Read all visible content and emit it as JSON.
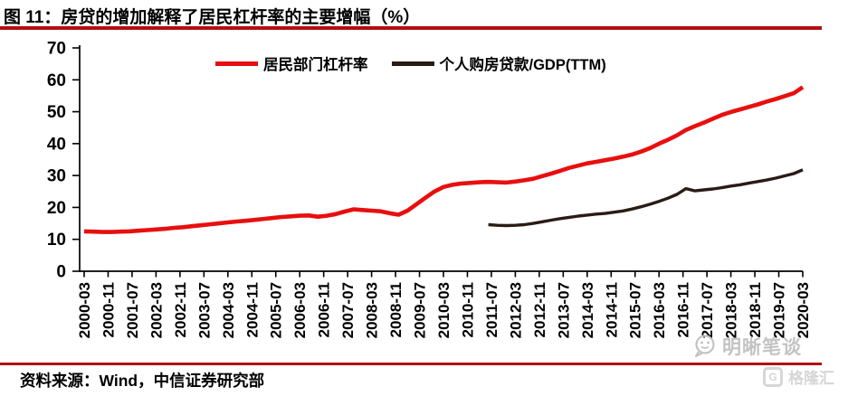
{
  "page": {
    "title": "图 11：房贷的增加解释了居民杠杆率的主要增幅（%）",
    "source": "资料来源：Wind，中信证券研究部",
    "watermark_text": "明晰笔谈",
    "brand_logo_text": "格隆汇",
    "accent_rule_color": "#b01014",
    "axis_color": "#000000"
  },
  "chart_data": {
    "type": "line",
    "title": "房贷的增加解释了居民杠杆率的主要增幅（%）",
    "xlabel": "",
    "ylabel": "",
    "ylim": [
      0,
      70
    ],
    "ytick_interval": 10,
    "ytick_labels": [
      "0",
      "10",
      "20",
      "30",
      "40",
      "50",
      "60",
      "70"
    ],
    "grid": false,
    "legend_position": "top-center",
    "x_tick_labels": [
      "2000-03",
      "2000-11",
      "2001-07",
      "2002-03",
      "2002-11",
      "2003-07",
      "2004-03",
      "2004-11",
      "2005-07",
      "2006-03",
      "2006-11",
      "2007-07",
      "2008-03",
      "2008-11",
      "2009-07",
      "2010-03",
      "2010-11",
      "2011-07",
      "2012-03",
      "2012-11",
      "2013-07",
      "2014-03",
      "2014-11",
      "2015-07",
      "2016-03",
      "2016-11",
      "2017-07",
      "2018-03",
      "2018-11",
      "2019-07",
      "2020-03"
    ],
    "x_months_between_labeled_ticks": 8,
    "x_origin_label": "2000-03",
    "series": [
      {
        "name": "居民部门杠杆率",
        "color": "#e80f0f",
        "line_width": 4.6,
        "points_month_value": [
          [
            0,
            12.5
          ],
          [
            3,
            12.4
          ],
          [
            6,
            12.3
          ],
          [
            9,
            12.3
          ],
          [
            12,
            12.4
          ],
          [
            15,
            12.5
          ],
          [
            18,
            12.7
          ],
          [
            21,
            12.9
          ],
          [
            24,
            13.1
          ],
          [
            27,
            13.3
          ],
          [
            30,
            13.6
          ],
          [
            33,
            13.8
          ],
          [
            36,
            14.1
          ],
          [
            39,
            14.4
          ],
          [
            42,
            14.7
          ],
          [
            45,
            15.0
          ],
          [
            48,
            15.3
          ],
          [
            51,
            15.6
          ],
          [
            54,
            15.8
          ],
          [
            57,
            16.1
          ],
          [
            60,
            16.4
          ],
          [
            63,
            16.7
          ],
          [
            66,
            17.0
          ],
          [
            69,
            17.2
          ],
          [
            72,
            17.4
          ],
          [
            75,
            17.5
          ],
          [
            78,
            17.1
          ],
          [
            81,
            17.4
          ],
          [
            84,
            17.9
          ],
          [
            87,
            18.7
          ],
          [
            90,
            19.4
          ],
          [
            93,
            19.2
          ],
          [
            96,
            19.0
          ],
          [
            99,
            18.8
          ],
          [
            102,
            18.2
          ],
          [
            105,
            17.7
          ],
          [
            108,
            19.0
          ],
          [
            111,
            21.0
          ],
          [
            114,
            23.0
          ],
          [
            117,
            25.0
          ],
          [
            120,
            26.4
          ],
          [
            123,
            27.1
          ],
          [
            126,
            27.5
          ],
          [
            129,
            27.7
          ],
          [
            132,
            27.9
          ],
          [
            135,
            28.0
          ],
          [
            138,
            27.9
          ],
          [
            141,
            27.8
          ],
          [
            144,
            28.1
          ],
          [
            147,
            28.5
          ],
          [
            150,
            29.0
          ],
          [
            153,
            29.8
          ],
          [
            156,
            30.6
          ],
          [
            159,
            31.5
          ],
          [
            162,
            32.4
          ],
          [
            165,
            33.1
          ],
          [
            168,
            33.8
          ],
          [
            171,
            34.3
          ],
          [
            174,
            34.8
          ],
          [
            177,
            35.3
          ],
          [
            180,
            35.9
          ],
          [
            183,
            36.6
          ],
          [
            186,
            37.5
          ],
          [
            189,
            38.6
          ],
          [
            192,
            40.0
          ],
          [
            195,
            41.2
          ],
          [
            198,
            42.6
          ],
          [
            201,
            44.3
          ],
          [
            204,
            45.5
          ],
          [
            207,
            46.6
          ],
          [
            210,
            47.8
          ],
          [
            213,
            49.0
          ],
          [
            216,
            49.9
          ],
          [
            219,
            50.7
          ],
          [
            222,
            51.5
          ],
          [
            225,
            52.3
          ],
          [
            228,
            53.2
          ],
          [
            231,
            54.0
          ],
          [
            234,
            54.9
          ],
          [
            237,
            55.8
          ],
          [
            240,
            57.7
          ]
        ]
      },
      {
        "name": "个人购房贷款/GDP(TTM)",
        "color": "#2a1b15",
        "line_width": 3.4,
        "points_month_value": [
          [
            135,
            14.6
          ],
          [
            138,
            14.4
          ],
          [
            141,
            14.3
          ],
          [
            144,
            14.4
          ],
          [
            147,
            14.6
          ],
          [
            150,
            15.0
          ],
          [
            153,
            15.5
          ],
          [
            156,
            16.0
          ],
          [
            159,
            16.5
          ],
          [
            162,
            16.9
          ],
          [
            165,
            17.3
          ],
          [
            168,
            17.6
          ],
          [
            171,
            17.9
          ],
          [
            174,
            18.1
          ],
          [
            177,
            18.5
          ],
          [
            180,
            18.9
          ],
          [
            183,
            19.5
          ],
          [
            186,
            20.2
          ],
          [
            189,
            21.0
          ],
          [
            192,
            21.9
          ],
          [
            195,
            22.9
          ],
          [
            198,
            24.1
          ],
          [
            201,
            25.9
          ],
          [
            204,
            25.2
          ],
          [
            207,
            25.5
          ],
          [
            210,
            25.8
          ],
          [
            213,
            26.2
          ],
          [
            216,
            26.7
          ],
          [
            219,
            27.1
          ],
          [
            222,
            27.6
          ],
          [
            225,
            28.1
          ],
          [
            228,
            28.6
          ],
          [
            231,
            29.2
          ],
          [
            234,
            29.9
          ],
          [
            237,
            30.6
          ],
          [
            240,
            31.8
          ]
        ]
      }
    ]
  }
}
